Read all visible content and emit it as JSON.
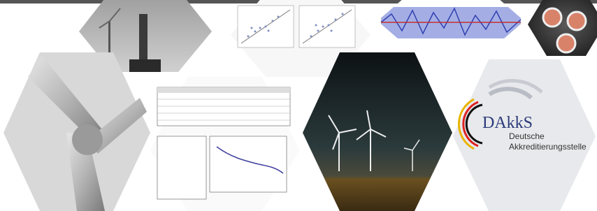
{
  "logo": {
    "acronym": "DAkkS",
    "name_line1": "Deutsche",
    "name_line2": "Akkreditierungsstelle"
  }
}
